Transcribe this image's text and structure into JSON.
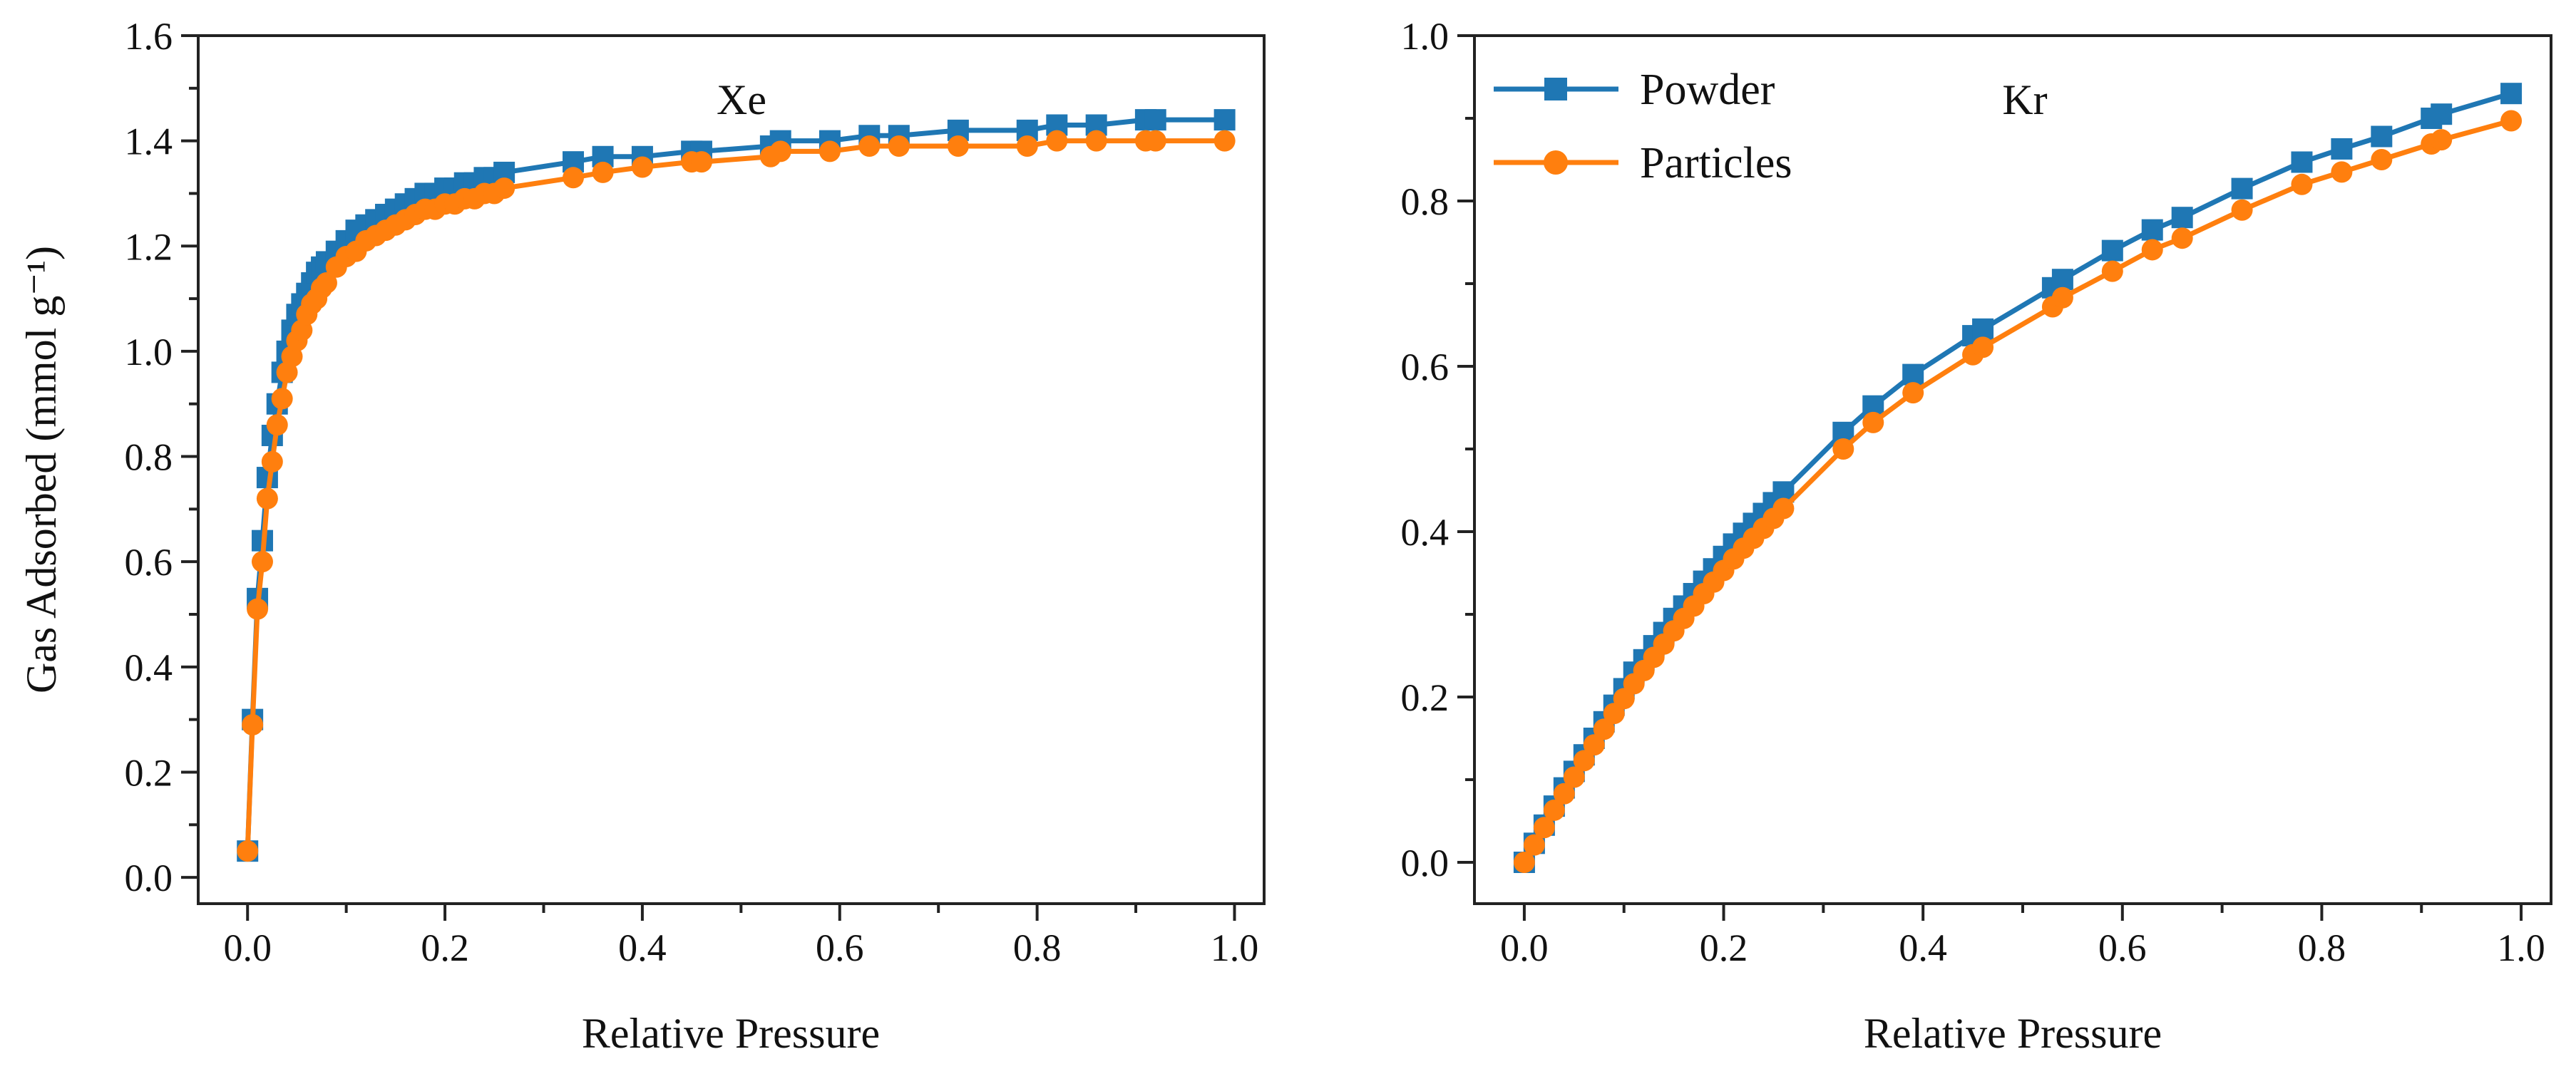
{
  "chart_data": [
    {
      "type": "line",
      "title": "Xe",
      "xlabel": "Relative Pressure",
      "ylabel": "Gas Adsorbed (mmol g⁻¹)",
      "xlim": [
        -0.05,
        1.03
      ],
      "ylim": [
        -0.05,
        1.6
      ],
      "xticks": [
        "0.0",
        "0.2",
        "0.4",
        "0.6",
        "0.8",
        "1.0"
      ],
      "yticks": [
        "0.0",
        "0.2",
        "0.4",
        "0.6",
        "0.8",
        "1.0",
        "1.2",
        "1.4",
        "1.6"
      ],
      "series": [
        {
          "name": "Powder",
          "color": "#1f77b4",
          "marker": "square",
          "x": [
            0.0,
            0.005,
            0.01,
            0.015,
            0.02,
            0.025,
            0.03,
            0.035,
            0.04,
            0.045,
            0.05,
            0.055,
            0.06,
            0.065,
            0.07,
            0.075,
            0.08,
            0.09,
            0.1,
            0.11,
            0.12,
            0.13,
            0.14,
            0.15,
            0.16,
            0.17,
            0.18,
            0.19,
            0.2,
            0.21,
            0.22,
            0.23,
            0.24,
            0.25,
            0.26,
            0.33,
            0.36,
            0.4,
            0.45,
            0.46,
            0.53,
            0.54,
            0.59,
            0.63,
            0.66,
            0.72,
            0.79,
            0.82,
            0.86,
            0.91,
            0.92,
            0.99
          ],
          "y": [
            0.05,
            0.3,
            0.53,
            0.64,
            0.76,
            0.84,
            0.9,
            0.96,
            1.0,
            1.04,
            1.07,
            1.09,
            1.11,
            1.13,
            1.15,
            1.16,
            1.17,
            1.19,
            1.21,
            1.23,
            1.24,
            1.25,
            1.26,
            1.27,
            1.28,
            1.29,
            1.3,
            1.3,
            1.31,
            1.31,
            1.32,
            1.32,
            1.33,
            1.33,
            1.34,
            1.36,
            1.37,
            1.37,
            1.38,
            1.38,
            1.39,
            1.4,
            1.4,
            1.41,
            1.41,
            1.42,
            1.42,
            1.43,
            1.43,
            1.44,
            1.44,
            1.44
          ]
        },
        {
          "name": "Particles",
          "color": "#ff7f0e",
          "marker": "circle",
          "x": [
            0.0,
            0.005,
            0.01,
            0.015,
            0.02,
            0.025,
            0.03,
            0.035,
            0.04,
            0.045,
            0.05,
            0.055,
            0.06,
            0.065,
            0.07,
            0.075,
            0.08,
            0.09,
            0.1,
            0.11,
            0.12,
            0.13,
            0.14,
            0.15,
            0.16,
            0.17,
            0.18,
            0.19,
            0.2,
            0.21,
            0.22,
            0.23,
            0.24,
            0.25,
            0.26,
            0.33,
            0.36,
            0.4,
            0.45,
            0.46,
            0.53,
            0.54,
            0.59,
            0.63,
            0.66,
            0.72,
            0.79,
            0.82,
            0.86,
            0.91,
            0.92,
            0.99
          ],
          "y": [
            0.05,
            0.29,
            0.51,
            0.6,
            0.72,
            0.79,
            0.86,
            0.91,
            0.96,
            0.99,
            1.02,
            1.04,
            1.07,
            1.09,
            1.1,
            1.12,
            1.13,
            1.16,
            1.18,
            1.19,
            1.21,
            1.22,
            1.23,
            1.24,
            1.25,
            1.26,
            1.27,
            1.27,
            1.28,
            1.28,
            1.29,
            1.29,
            1.3,
            1.3,
            1.31,
            1.33,
            1.34,
            1.35,
            1.36,
            1.36,
            1.37,
            1.38,
            1.38,
            1.39,
            1.39,
            1.39,
            1.39,
            1.4,
            1.4,
            1.4,
            1.4,
            1.4
          ]
        }
      ]
    },
    {
      "type": "line",
      "title": "Kr",
      "xlabel": "Relative Pressure",
      "ylabel": "",
      "xlim": [
        -0.05,
        1.03
      ],
      "ylim": [
        -0.05,
        1.0
      ],
      "xticks": [
        "0.0",
        "0.2",
        "0.4",
        "0.6",
        "0.8",
        "1.0"
      ],
      "yticks": [
        "0.0",
        "0.2",
        "0.4",
        "0.6",
        "0.8",
        "1.0"
      ],
      "legend": {
        "position": "top-left",
        "entries": [
          "Powder",
          "Particles"
        ]
      },
      "series": [
        {
          "name": "Powder",
          "color": "#1f77b4",
          "marker": "square",
          "x": [
            0.0,
            0.01,
            0.02,
            0.03,
            0.04,
            0.05,
            0.06,
            0.07,
            0.08,
            0.09,
            0.1,
            0.11,
            0.12,
            0.13,
            0.14,
            0.15,
            0.16,
            0.17,
            0.18,
            0.19,
            0.2,
            0.21,
            0.22,
            0.23,
            0.24,
            0.25,
            0.26,
            0.32,
            0.35,
            0.39,
            0.45,
            0.46,
            0.53,
            0.54,
            0.59,
            0.63,
            0.66,
            0.72,
            0.78,
            0.82,
            0.86,
            0.91,
            0.92,
            0.99
          ],
          "y": [
            0.0,
            0.023,
            0.045,
            0.068,
            0.09,
            0.11,
            0.13,
            0.15,
            0.17,
            0.19,
            0.21,
            0.23,
            0.245,
            0.262,
            0.278,
            0.295,
            0.31,
            0.325,
            0.34,
            0.355,
            0.37,
            0.385,
            0.398,
            0.41,
            0.422,
            0.435,
            0.448,
            0.52,
            0.552,
            0.59,
            0.637,
            0.645,
            0.695,
            0.705,
            0.74,
            0.765,
            0.78,
            0.815,
            0.847,
            0.863,
            0.878,
            0.9,
            0.905,
            0.93
          ]
        },
        {
          "name": "Particles",
          "color": "#ff7f0e",
          "marker": "circle",
          "x": [
            0.0,
            0.01,
            0.02,
            0.03,
            0.04,
            0.05,
            0.06,
            0.07,
            0.08,
            0.09,
            0.1,
            0.11,
            0.12,
            0.13,
            0.14,
            0.15,
            0.16,
            0.17,
            0.18,
            0.19,
            0.2,
            0.21,
            0.22,
            0.23,
            0.24,
            0.25,
            0.26,
            0.32,
            0.35,
            0.39,
            0.45,
            0.46,
            0.53,
            0.54,
            0.59,
            0.63,
            0.66,
            0.72,
            0.78,
            0.82,
            0.86,
            0.91,
            0.92,
            0.99
          ],
          "y": [
            0.0,
            0.021,
            0.042,
            0.063,
            0.083,
            0.103,
            0.123,
            0.142,
            0.161,
            0.18,
            0.198,
            0.216,
            0.232,
            0.248,
            0.264,
            0.28,
            0.295,
            0.31,
            0.325,
            0.339,
            0.353,
            0.367,
            0.38,
            0.392,
            0.404,
            0.416,
            0.428,
            0.5,
            0.532,
            0.568,
            0.614,
            0.623,
            0.672,
            0.683,
            0.715,
            0.741,
            0.755,
            0.789,
            0.82,
            0.835,
            0.85,
            0.869,
            0.874,
            0.897
          ]
        }
      ]
    }
  ]
}
